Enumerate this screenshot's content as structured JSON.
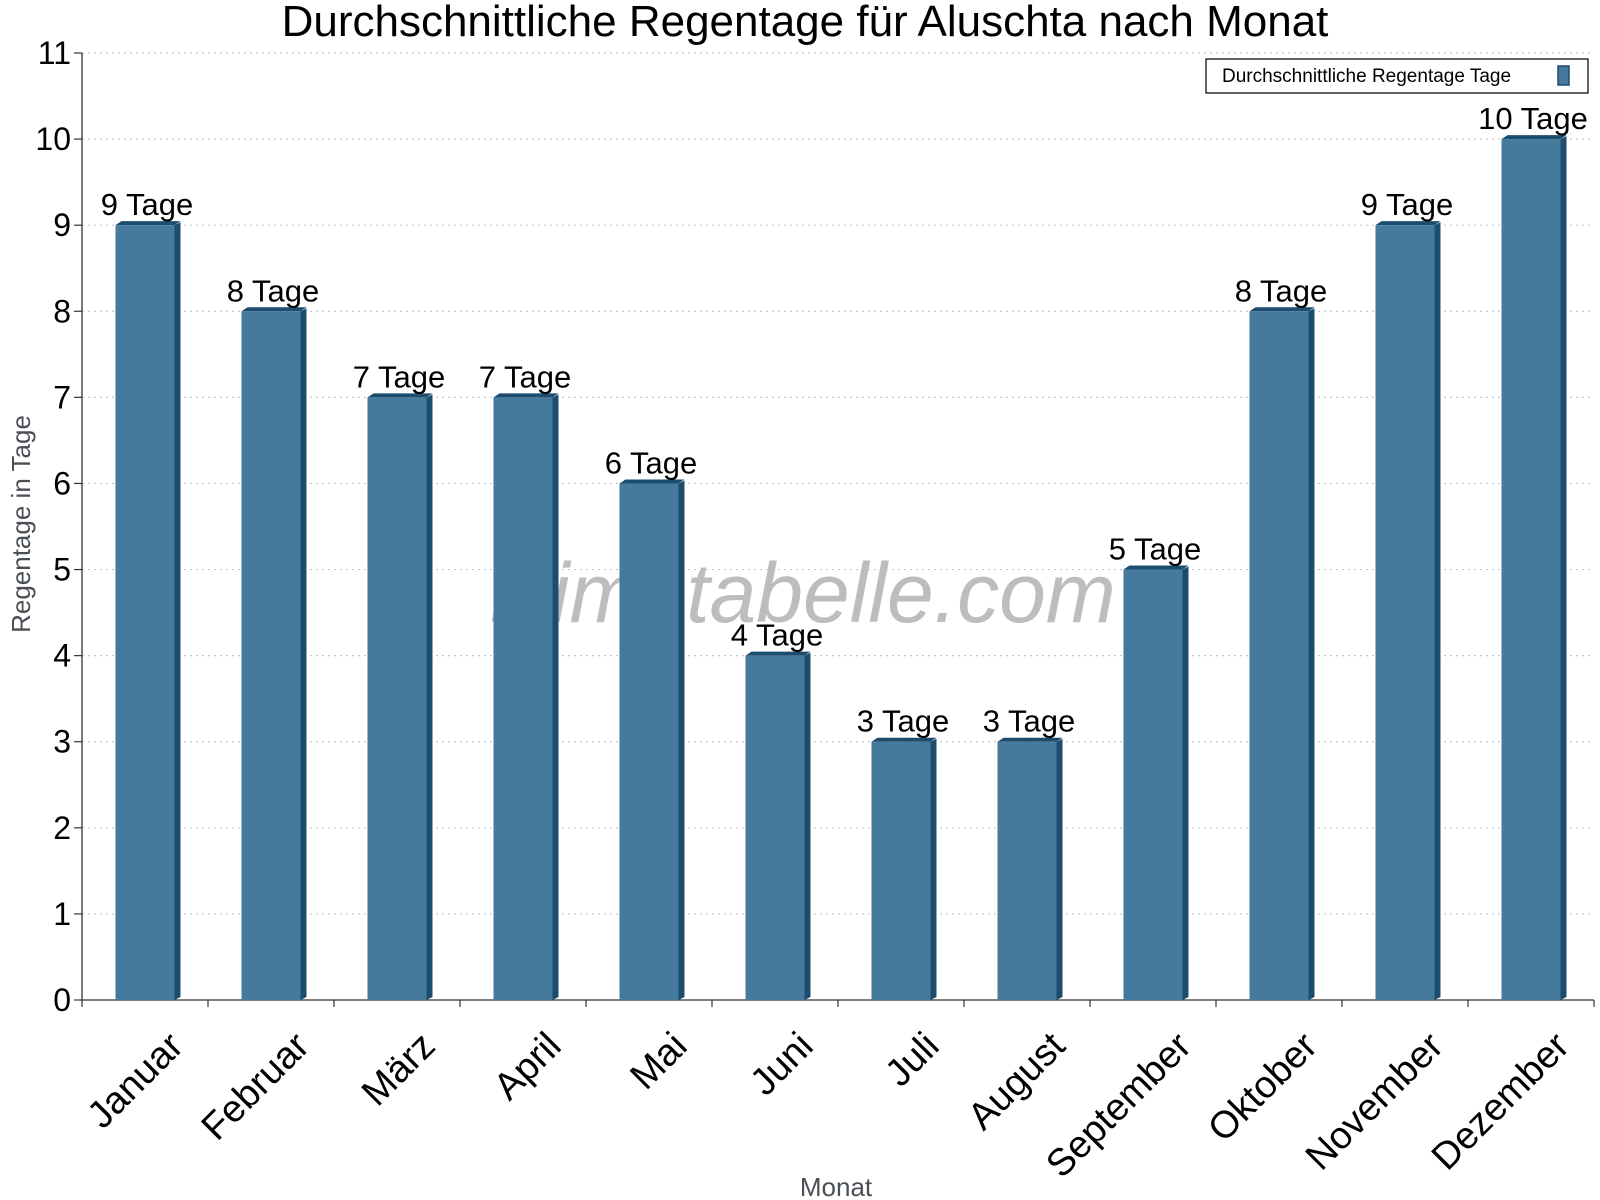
{
  "chart_data": {
    "type": "bar",
    "title": "Durchschnittliche Regentage für Aluschta nach Monat",
    "xlabel": "Monat",
    "ylabel": "Regentage in Tage",
    "ylim": [
      0,
      11
    ],
    "yticks": [
      0,
      1,
      2,
      3,
      4,
      5,
      6,
      7,
      8,
      9,
      10,
      11
    ],
    "grid": true,
    "legend_position": "top-right",
    "categories": [
      "Januar",
      "Februar",
      "März",
      "April",
      "Mai",
      "Juni",
      "Juli",
      "August",
      "September",
      "Oktober",
      "November",
      "Dezember"
    ],
    "series": [
      {
        "name": "Durchschnittliche Regentage Tage",
        "values": [
          9,
          8,
          7,
          7,
          6,
          4,
          3,
          3,
          5,
          8,
          9,
          10
        ],
        "data_labels": [
          "9 Tage",
          "8 Tage",
          "7 Tage",
          "7 Tage",
          "6 Tage",
          "4 Tage",
          "3 Tage",
          "3 Tage",
          "5 Tage",
          "8 Tage",
          "9 Tage",
          "10 Tage"
        ],
        "color": "#457a9c",
        "side_color": "#1d4d6e"
      }
    ],
    "watermark": "klimatabelle.com"
  }
}
